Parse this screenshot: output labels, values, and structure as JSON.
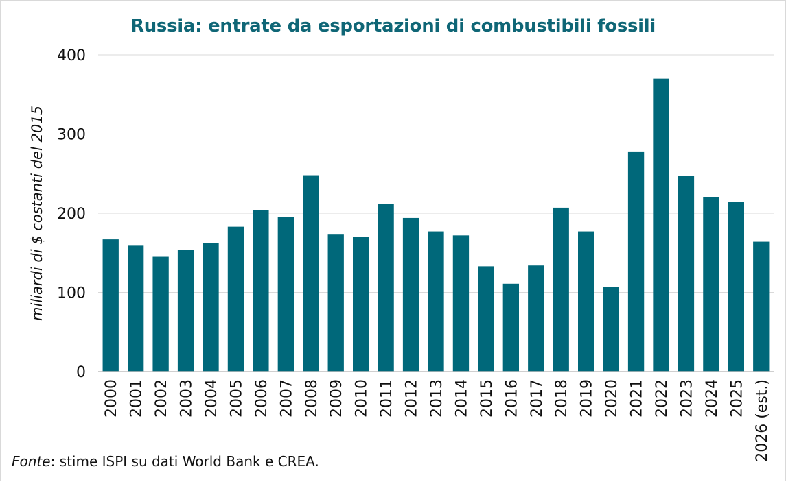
{
  "chart_data": {
    "type": "bar",
    "title": "Russia: entrate da esportazioni di combustibili fossili",
    "xlabel": "",
    "ylabel": "miliardi di $ costanti del 2015",
    "ylim": [
      0,
      400
    ],
    "yticks": [
      0,
      100,
      200,
      300,
      400
    ],
    "grid": true,
    "categories": [
      "2000",
      "2001",
      "2002",
      "2003",
      "2004",
      "2005",
      "2006",
      "2007",
      "2008",
      "2009",
      "2010",
      "2011",
      "2012",
      "2013",
      "2014",
      "2015",
      "2016",
      "2017",
      "2018",
      "2019",
      "2020",
      "2021",
      "2022",
      "2023",
      "2024",
      "2025",
      "2026 (est.)"
    ],
    "values": [
      167,
      159,
      145,
      154,
      162,
      183,
      204,
      195,
      248,
      173,
      170,
      212,
      194,
      177,
      172,
      133,
      111,
      134,
      207,
      177,
      107,
      278,
      370,
      247,
      220,
      214,
      164
    ],
    "bar_color": "#00687a"
  },
  "source": {
    "label": "Fonte",
    "text": ": stime ISPI su dati World Bank e CREA."
  }
}
